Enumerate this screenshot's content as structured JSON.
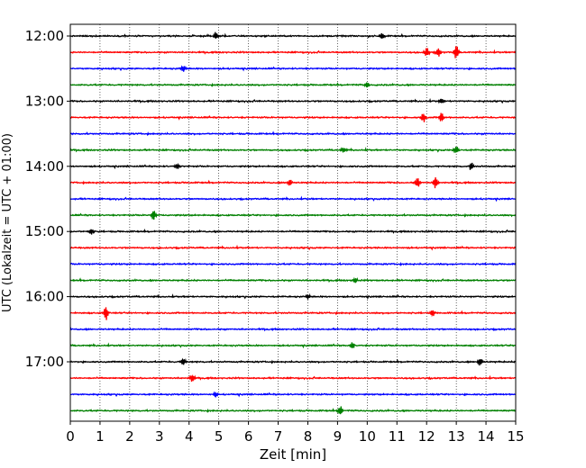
{
  "chart_data": {
    "type": "line",
    "title": "",
    "xlabel": "Zeit  [min]",
    "ylabel": "UTC (Lokalzeit = UTC + 01:00)",
    "xlim": [
      0,
      15
    ],
    "x_ticks": [
      0,
      1,
      2,
      3,
      4,
      5,
      6,
      7,
      8,
      9,
      10,
      11,
      12,
      13,
      14,
      15
    ],
    "x_tick_labels": [
      "0",
      "1",
      "2",
      "3",
      "4",
      "5",
      "6",
      "7",
      "8",
      "9",
      "10",
      "11",
      "12",
      "13",
      "14",
      "15"
    ],
    "y_tick_labels": [
      "12:00",
      "13:00",
      "14:00",
      "15:00",
      "16:00",
      "17:00"
    ],
    "grid": "vertical dotted",
    "trace_colors": [
      "#000000",
      "#ff0000",
      "#0000ff",
      "#008000"
    ],
    "trace_start_times": [
      "12:00",
      "12:15",
      "12:30",
      "12:45",
      "13:00",
      "13:15",
      "13:30",
      "13:45",
      "14:00",
      "14:15",
      "14:30",
      "14:45",
      "15:00",
      "15:15",
      "15:30",
      "15:45",
      "16:00",
      "16:15",
      "16:30",
      "16:45",
      "17:00",
      "17:15",
      "17:30",
      "17:45"
    ],
    "events": [
      {
        "trace": 0,
        "x": 4.9,
        "amp": 0.45
      },
      {
        "trace": 0,
        "x": 10.5,
        "amp": 0.4
      },
      {
        "trace": 1,
        "x": 12.0,
        "amp": 0.6
      },
      {
        "trace": 1,
        "x": 12.4,
        "amp": 0.55
      },
      {
        "trace": 1,
        "x": 13.0,
        "amp": 0.9
      },
      {
        "trace": 2,
        "x": 3.8,
        "amp": 0.4
      },
      {
        "trace": 3,
        "x": 10.0,
        "amp": 0.35
      },
      {
        "trace": 4,
        "x": 12.5,
        "amp": 0.35
      },
      {
        "trace": 5,
        "x": 11.9,
        "amp": 0.6
      },
      {
        "trace": 5,
        "x": 12.5,
        "amp": 0.6
      },
      {
        "trace": 7,
        "x": 9.2,
        "amp": 0.35
      },
      {
        "trace": 7,
        "x": 13.0,
        "amp": 0.5
      },
      {
        "trace": 8,
        "x": 3.6,
        "amp": 0.35
      },
      {
        "trace": 8,
        "x": 13.5,
        "amp": 0.5
      },
      {
        "trace": 9,
        "x": 7.4,
        "amp": 0.45
      },
      {
        "trace": 9,
        "x": 11.7,
        "amp": 0.65
      },
      {
        "trace": 9,
        "x": 12.3,
        "amp": 0.7
      },
      {
        "trace": 11,
        "x": 2.8,
        "amp": 0.65
      },
      {
        "trace": 12,
        "x": 0.7,
        "amp": 0.35
      },
      {
        "trace": 15,
        "x": 9.6,
        "amp": 0.35
      },
      {
        "trace": 16,
        "x": 8.0,
        "amp": 0.3
      },
      {
        "trace": 17,
        "x": 1.2,
        "amp": 0.9
      },
      {
        "trace": 17,
        "x": 12.2,
        "amp": 0.45
      },
      {
        "trace": 19,
        "x": 9.5,
        "amp": 0.45
      },
      {
        "trace": 20,
        "x": 3.8,
        "amp": 0.45
      },
      {
        "trace": 20,
        "x": 13.8,
        "amp": 0.45
      },
      {
        "trace": 21,
        "x": 4.1,
        "amp": 0.45
      },
      {
        "trace": 22,
        "x": 4.9,
        "amp": 0.35
      },
      {
        "trace": 23,
        "x": 9.1,
        "amp": 0.6
      }
    ]
  }
}
